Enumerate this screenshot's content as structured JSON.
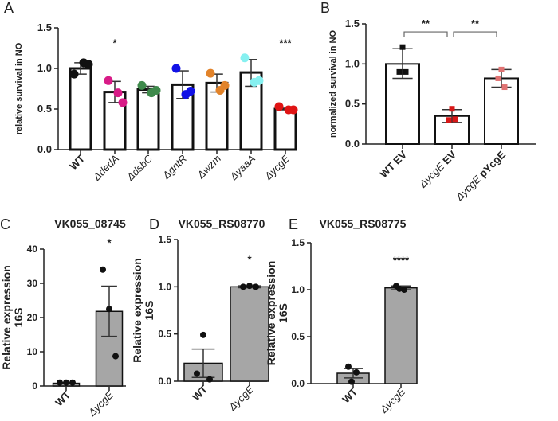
{
  "chart_data": [
    {
      "panel": "A",
      "type": "bar",
      "title": "",
      "ylabel": "relative survival in NO",
      "ylim": [
        0,
        1.5
      ],
      "yticks": [
        "0.0",
        "0.5",
        "1.0",
        "1.5"
      ],
      "categories": [
        "WT",
        "ΔdedA",
        "ΔdsbC",
        "ΔgntR",
        "Δwzm",
        "ΔyaaA",
        "ΔycgE"
      ],
      "values": [
        1.0,
        0.71,
        0.74,
        0.8,
        0.82,
        0.95,
        0.5
      ],
      "error_low": [
        0.93,
        0.58,
        0.7,
        0.63,
        0.71,
        0.78,
        0.49
      ],
      "error_high": [
        1.07,
        0.84,
        0.78,
        0.97,
        0.93,
        1.11,
        0.51
      ],
      "points": [
        [
          0.93,
          1.07,
          1.05
        ],
        [
          0.85,
          0.7,
          0.58
        ],
        [
          0.79,
          0.7,
          0.73
        ],
        [
          1.0,
          0.68,
          0.72
        ],
        [
          0.94,
          0.73,
          0.79
        ],
        [
          1.13,
          0.83,
          0.85
        ],
        [
          0.53,
          0.49,
          0.49
        ]
      ],
      "point_colors": [
        "#111111",
        "#d81b87",
        "#3f8a4c",
        "#1212e6",
        "#e2832a",
        "#86f0f0",
        "#e01414"
      ],
      "significance": [
        "",
        "*",
        "",
        "",
        "",
        "",
        "***"
      ],
      "bar_fill": "#ffffff"
    },
    {
      "panel": "B",
      "type": "bar",
      "title": "",
      "ylabel": "normalized survival in NO",
      "ylim": [
        0,
        1.5
      ],
      "yticks": [
        "0.0",
        "0.5",
        "1.0",
        "1.5"
      ],
      "categories": [
        "WT EV",
        "ΔycgE EV",
        "ΔycgE pYcgE"
      ],
      "values": [
        1.0,
        0.35,
        0.82
      ],
      "error_low": [
        0.82,
        0.27,
        0.71
      ],
      "error_high": [
        1.19,
        0.43,
        0.93
      ],
      "points": [
        [
          1.21,
          0.9,
          0.9
        ],
        [
          0.44,
          0.3,
          0.31
        ],
        [
          0.93,
          0.82,
          0.71
        ]
      ],
      "point_colors": [
        "#111111",
        "#d81818",
        "#e07272"
      ],
      "brackets": [
        {
          "from": 0,
          "to": 1,
          "label": "**"
        },
        {
          "from": 1,
          "to": 2,
          "label": "**"
        }
      ],
      "bar_fill": "#ffffff"
    },
    {
      "panel": "C",
      "type": "bar",
      "title": "VK055_08745",
      "ylabel": "Relative expression 16S",
      "ylim": [
        0,
        40
      ],
      "yticks": [
        "0",
        "10",
        "20",
        "30",
        "40"
      ],
      "categories": [
        "WT",
        "ΔycgE"
      ],
      "values": [
        0.8,
        21.8
      ],
      "error_low": [
        0.6,
        14.5
      ],
      "error_high": [
        1.0,
        29.2
      ],
      "points": [
        [
          1.0,
          1.0,
          1.0
        ],
        [
          34.0,
          22.5,
          8.7
        ]
      ],
      "point_colors": [
        "#111111",
        "#111111"
      ],
      "significance": [
        "",
        "*"
      ],
      "bar_fill": "#a6a6a6"
    },
    {
      "panel": "D",
      "type": "bar",
      "title": "VK055_RS08770",
      "ylabel": "Relative expression 16S",
      "ylim": [
        0,
        1.5
      ],
      "yticks": [
        "0.0",
        "0.5",
        "1.0",
        "1.5"
      ],
      "categories": [
        "WT",
        "ΔycgE"
      ],
      "values": [
        0.19,
        1.0
      ],
      "error_low": [
        0.04,
        0.99
      ],
      "error_high": [
        0.34,
        1.01
      ],
      "points": [
        [
          0.49,
          0.08,
          0.02
        ],
        [
          1.01,
          1.0,
          1.0
        ]
      ],
      "point_colors": [
        "#111111",
        "#111111"
      ],
      "significance": [
        "",
        "*"
      ],
      "bar_fill": "#a6a6a6"
    },
    {
      "panel": "E",
      "type": "bar",
      "title": "VK055_RS08775",
      "ylabel": "Relative expression 16S",
      "ylim": [
        0,
        1.5
      ],
      "yticks": [
        "0.0",
        "0.5",
        "1.0",
        "1.5"
      ],
      "categories": [
        "WT",
        "ΔycgE"
      ],
      "values": [
        0.11,
        1.02
      ],
      "error_low": [
        0.06,
        1.0
      ],
      "error_high": [
        0.16,
        1.04
      ],
      "points": [
        [
          0.18,
          0.12,
          0.02
        ],
        [
          1.04,
          1.0,
          1.01
        ]
      ],
      "point_colors": [
        "#111111",
        "#111111"
      ],
      "significance": [
        "",
        "****"
      ],
      "bar_fill": "#a6a6a6"
    }
  ]
}
